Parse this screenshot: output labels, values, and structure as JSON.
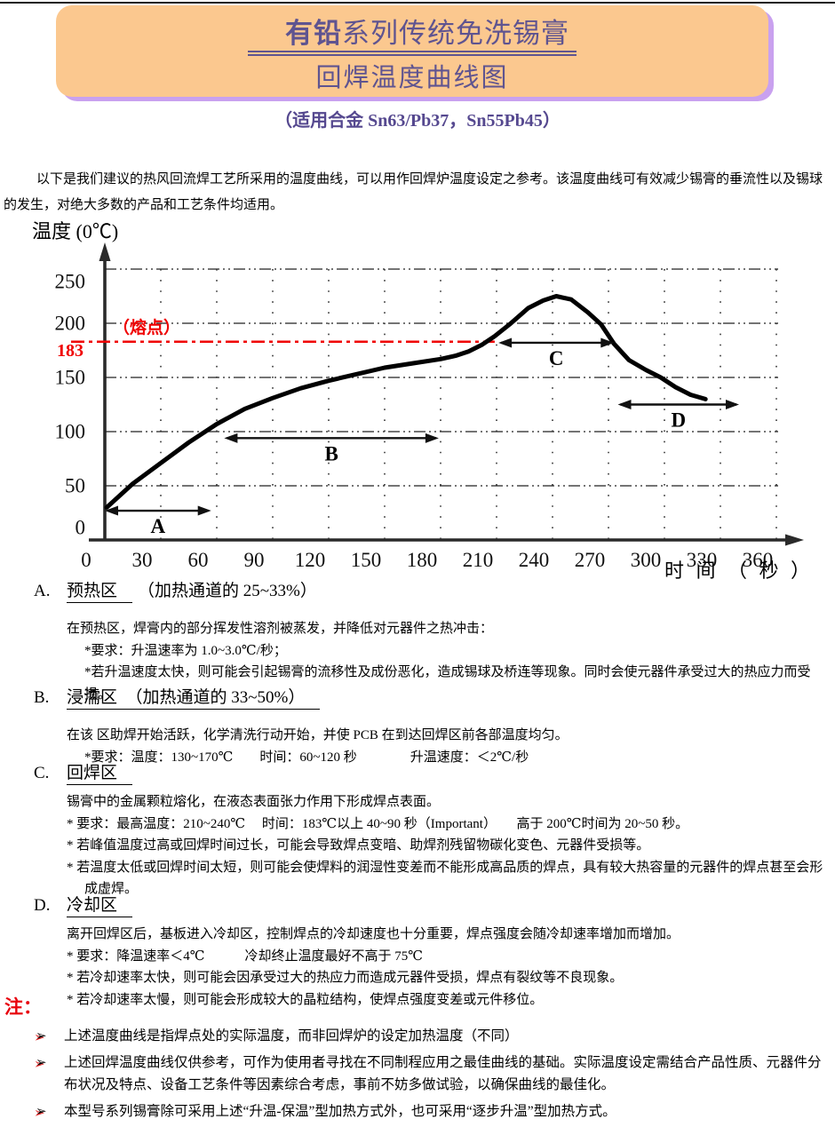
{
  "header": {
    "title_bold": "有铅",
    "title_rest": "系列传统免洗锡膏",
    "title_line2": "回焊温度曲线图",
    "subtitle": "（适用合金 Sn63/Pb37，Sn55Pb45）"
  },
  "intro": "以下是我们建议的热风回流焊工艺所采用的温度曲线，可以用作回焊炉温度设定之参考。该温度曲线可有效减少锡膏的垂流性以及锡球的发生，对绝大多数的产品和工艺条件均适用。",
  "chart_data": {
    "type": "line",
    "title": "回焊温度曲线图",
    "xlabel": "时 间 （ 秒 ）",
    "ylabel": "温度 (0℃)",
    "xlim": [
      0,
      390
    ],
    "ylim": [
      0,
      275
    ],
    "grid": true,
    "x_ticks": [
      0,
      30,
      60,
      90,
      120,
      150,
      180,
      210,
      240,
      270,
      300,
      330,
      360
    ],
    "y_ticks": [
      0,
      50,
      100,
      150,
      200,
      250
    ],
    "melting_point": {
      "value": 183,
      "y_label": "183",
      "label": "（熔点）",
      "color": "#f00000",
      "line_end_s": 209
    },
    "series": [
      {
        "name": "回焊温度曲线",
        "points": [
          [
            1,
            30
          ],
          [
            15,
            52
          ],
          [
            30,
            71
          ],
          [
            45,
            90
          ],
          [
            60,
            107
          ],
          [
            75,
            121
          ],
          [
            90,
            131
          ],
          [
            105,
            140
          ],
          [
            120,
            147
          ],
          [
            135,
            153
          ],
          [
            150,
            159
          ],
          [
            165,
            163
          ],
          [
            180,
            167
          ],
          [
            188,
            170
          ],
          [
            195,
            174
          ],
          [
            202,
            180
          ],
          [
            209,
            188
          ],
          [
            217,
            199
          ],
          [
            227,
            214
          ],
          [
            235,
            221
          ],
          [
            242,
            225
          ],
          [
            250,
            222
          ],
          [
            259,
            210
          ],
          [
            266,
            199
          ],
          [
            273,
            181
          ],
          [
            281,
            166
          ],
          [
            290,
            157
          ],
          [
            298,
            150
          ],
          [
            306,
            141
          ],
          [
            314,
            134
          ],
          [
            322,
            130
          ]
        ]
      }
    ],
    "zones": [
      {
        "label": "A",
        "x_start": 0,
        "x_end": 57,
        "temp": 27
      },
      {
        "label": "B",
        "x_start": 64,
        "x_end": 179,
        "temp": 94
      },
      {
        "label": "C",
        "x_start": 211,
        "x_end": 273,
        "temp": 182
      },
      {
        "label": "D",
        "x_start": 275,
        "x_end": 340,
        "temp": 125
      }
    ]
  },
  "sections": [
    {
      "label": "A.",
      "title": "预热区",
      "suffix": "（加热通道的 25~33%）",
      "lines": [
        "在预热区，焊膏内的部分挥发性溶剂被蒸发，并降低对元器件之热冲击：",
        "*要求：升温速率为 1.0~3.0℃/秒；",
        "*若升温速度太快，则可能会引起锡膏的流移性及成份恶化，造成锡球及桥连等现象。同时会使元器件承受过大的热应力而受损。"
      ]
    },
    {
      "label": "B.",
      "title": "浸濡区　（加热通道的 33~50%）",
      "suffix": "",
      "lines": [
        "在该 区助焊开始活跃，化学清洗行动开始，并使 PCB 在到达回焊区前各部温度均匀。",
        "*要求：温度：130~170℃　　时间：60~120 秒　　　　升温速度：＜2℃/秒"
      ]
    },
    {
      "label": "C.",
      "title": "回焊区",
      "suffix": "",
      "lines": [
        "锡膏中的金属颗粒熔化，在液态表面张力作用下形成焊点表面。",
        "* 要求：最高温度：210~240℃　 时间：183℃以上 40~90 秒（Important）　　高于 200℃时间为 20~50 秒。",
        "* 若峰值温度过高或回焊时间过长，可能会导致焊点变暗、助焊剂残留物碳化变色、元器件受损等。",
        "* 若温度太低或回焊时间太短，则可能会使焊料的润湿性变差而不能形成高品质的焊点，具有较大热容量的元器件的焊点甚至会形成虚焊。"
      ]
    },
    {
      "label": "D.",
      "title": "冷却区",
      "suffix": "",
      "lines": [
        "离开回焊区后，基板进入冷却区，控制焊点的冷却速度也十分重要，焊点强度会随冷却速率增加而增加。",
        "* 要求：降温速率＜4℃　　　冷却终止温度最好不高于 75℃",
        "* 若冷却速率太快，则可能会因承受过大的热应力而造成元器件受损，焊点有裂纹等不良现象。",
        "* 若冷却速率太慢，则可能会形成较大的晶粒结构，使焊点强度变差或元件移位。"
      ]
    }
  ],
  "notes": {
    "label": "注：",
    "marker": "➢",
    "items": [
      "上述温度曲线是指焊点处的实际温度，而非回焊炉的设定加热温度（不同）",
      "上述回焊温度曲线仅供参考，可作为使用者寻找在不同制程应用之最佳曲线的基础。实际温度设定需结合产品性质、元器件分布状况及特点、设备工艺条件等因素综合考虑，事前不妨多做试验，以确保曲线的最佳化。",
      "本型号系列锡膏除可采用上述“升温-保温”型加热方式外，也可采用“逐步升温”型加热方式。"
    ]
  },
  "colors": {
    "banner_fill": "#fbc88f",
    "banner_shadow": "#c9a1ef",
    "title_purple": "#5f5490",
    "melting_red": "#f00000",
    "curve_black": "#000000"
  }
}
